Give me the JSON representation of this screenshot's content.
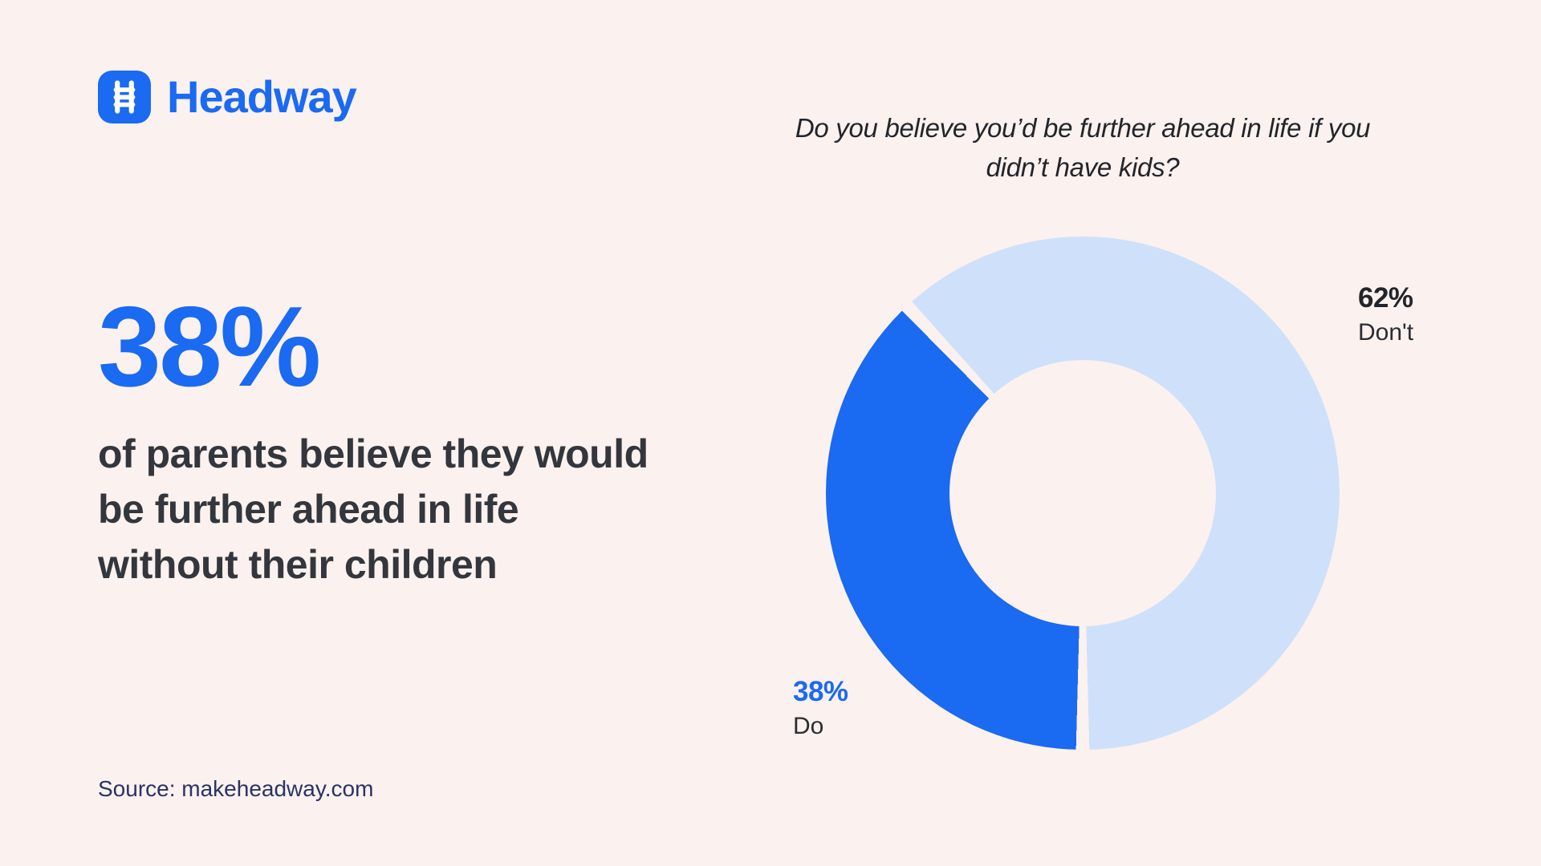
{
  "brand": {
    "name": "Headway",
    "icon": "ladder-icon"
  },
  "theme": {
    "background": "#FBF1EE",
    "brand_blue": "#1A6AF2",
    "light_blue": "#CFE0FA",
    "text_dark": "#33373D",
    "title_dark": "#22252B",
    "source_navy": "#2A3365"
  },
  "stat": {
    "value_label": "38%",
    "description": "of parents believe they would be further ahead in life without their children"
  },
  "source": {
    "text": "Source: makeheadway.com"
  },
  "chart_data": {
    "type": "pie",
    "donut": true,
    "title": "Do you believe you’d be further ahead in life if you didn’t have kids?",
    "hole_ratio": 0.52,
    "start_angle_deg": 180,
    "direction": "clockwise",
    "gap_deg": 3,
    "legend_position": "outside-labels",
    "slices": [
      {
        "label": "Do",
        "value": 38,
        "pct_label": "38%",
        "color": "#1A6AF2"
      },
      {
        "label": "Don't",
        "value": 62,
        "pct_label": "62%",
        "color": "#CFE0FA"
      }
    ]
  }
}
